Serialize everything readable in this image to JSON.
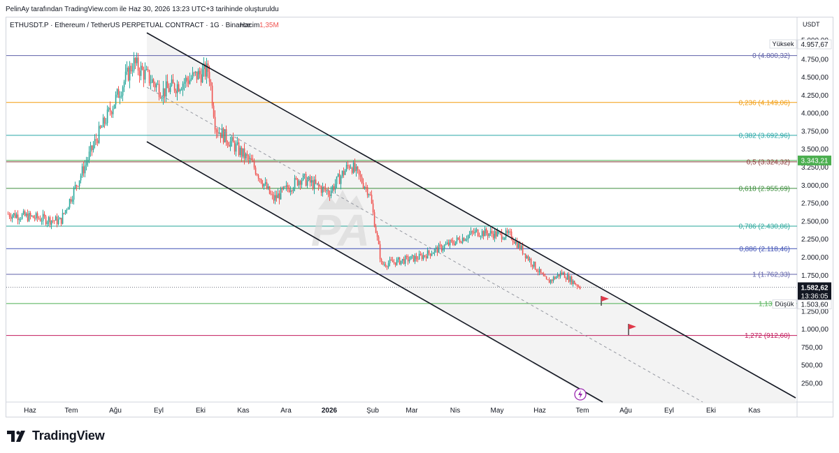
{
  "caption": "PelinAy tarafından TradingView.com ile Haz 30, 2026 13:23 UTC+3 tarihinde oluşturuldu",
  "header": {
    "symbol": "ETHUSDT.P · Ethereum / TetherUS PERPETUAL CONTRACT · 1G · Binance",
    "volume_label": "Hacim",
    "volume_value": "1,35M"
  },
  "currency": "USDT",
  "brand": "TradingView",
  "colors": {
    "up": "#26a69a",
    "down": "#ef5350",
    "channel": "#131722",
    "current_price_bg": "#131722",
    "level_price_bg": "#4caf50",
    "flag": "#e0394a"
  },
  "chart_data": {
    "type": "candlestick",
    "y_axis_ticks": [
      "250,00",
      "500,00",
      "750,00",
      "1.000,00",
      "1.250,00",
      "1.500,00",
      "1.750,00",
      "2.000,00",
      "2.250,00",
      "2.500,00",
      "2.750,00",
      "3.000,00",
      "3.250,00",
      "3.500,00",
      "3.750,00",
      "4.000,00",
      "4.250,00",
      "4.500,00",
      "4.750,00",
      "5.000,00"
    ],
    "x_axis_ticks": [
      "Haz",
      "Tem",
      "Ağu",
      "Eyl",
      "Eki",
      "Kas",
      "Ara",
      "2026",
      "Şub",
      "Mar",
      "Nis",
      "May",
      "Haz",
      "Tem",
      "Ağu",
      "Eyl",
      "Eki",
      "Kas"
    ],
    "price_anchors": [
      {
        "date": "Haz 2025",
        "close": 2600
      },
      {
        "date": "Tem 2025",
        "close": 2500
      },
      {
        "date": "Tem 2025",
        "close": 3700
      },
      {
        "date": "Ağu 2025",
        "close": 4700
      },
      {
        "date": "Eyl 2025",
        "close": 4300
      },
      {
        "date": "Eki 2025",
        "close": 4600
      },
      {
        "date": "Eki 2025",
        "close": 3800
      },
      {
        "date": "Kas 2025",
        "close": 3300
      },
      {
        "date": "Kas 2025",
        "close": 2800
      },
      {
        "date": "Ara 2025",
        "close": 3100
      },
      {
        "date": "Ara 2025",
        "close": 2900
      },
      {
        "date": "Oca 2026",
        "close": 3300
      },
      {
        "date": "Şub 2026",
        "close": 2900
      },
      {
        "date": "Şub 2026",
        "close": 1900
      },
      {
        "date": "Mar 2026",
        "close": 2000
      },
      {
        "date": "Nis 2026",
        "close": 2350
      },
      {
        "date": "May 2026",
        "close": 2300
      },
      {
        "date": "Haz 2026",
        "close": 1650
      },
      {
        "date": "Haz 2026",
        "close": 1780
      },
      {
        "date": "Haz 30 2026",
        "close": 1582.62
      }
    ],
    "fib_levels": [
      {
        "label": "0 (4.800,32)",
        "value": 4800.32,
        "color": "#5d5fa8"
      },
      {
        "label": "0,236 (4.149,06)",
        "value": 4149.06,
        "color": "#f29b0c"
      },
      {
        "label": "0,382 (3.692,96)",
        "value": 3692.96,
        "color": "#26a6a6"
      },
      {
        "label": "0,5 (3.324,32)",
        "value": 3324.32,
        "color": "#8b3a3a"
      },
      {
        "label": "0,618 (2.955,69)",
        "value": 2955.69,
        "color": "#3b8d3b"
      },
      {
        "label": "0,786 (2.430,86)",
        "value": 2430.86,
        "color": "#26a69a"
      },
      {
        "label": "0,886 (2.118,46)",
        "value": 2118.46,
        "color": "#3f51b5"
      },
      {
        "label": "1 (1.762,33)",
        "value": 1762.33,
        "color": "#5d5fa8"
      },
      {
        "label": "1,13 (1.35",
        "value": 1356,
        "color": "#4caf50"
      },
      {
        "label": "1,272 (912,60)",
        "value": 912.6,
        "color": "#c2185b"
      }
    ],
    "price_tags": {
      "high_label": "Yüksek",
      "high_value": "4.957,67",
      "level_value": "3.343,21",
      "current_value": "1.582,62",
      "countdown": "13:36:05",
      "low_label": "Düşük",
      "low_value": "1.503,60",
      "top_tick_partial": "5.000,00"
    },
    "watermark": "PA"
  }
}
